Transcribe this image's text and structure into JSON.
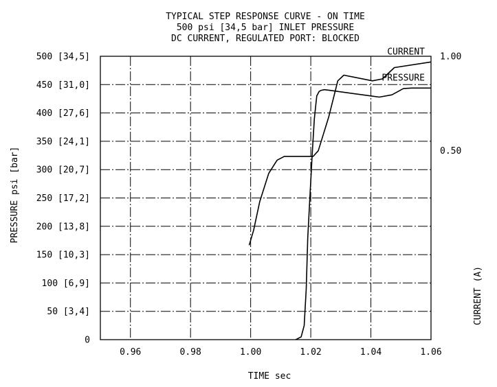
{
  "chart_data": {
    "type": "line",
    "title": "TYPICAL STEP RESPONSE CURVE - ON TIME",
    "subtitle_1": "500 psi [34,5 bar] INLET PRESSURE",
    "subtitle_2": "DC CURRENT, REGULATED PORT: BLOCKED",
    "xlabel": "TIME sec",
    "ylabel_left": "PRESSURE psi [bar]",
    "ylabel_right": "CURRENT (A)",
    "xlim": [
      0.95,
      1.06
    ],
    "ylim_left": [
      0,
      500
    ],
    "ylim_right": [
      -0.5,
      1.0
    ],
    "x_ticks": [
      "0.96",
      "0.98",
      "1.00",
      "1.02",
      "1.04",
      "1.06"
    ],
    "y_ticks_left": [
      "0",
      "50 [3,4]",
      "100 [6,9]",
      "150 [10,3]",
      "200 [13,8]",
      "250 [17,2]",
      "300 [20,7]",
      "350 [24,1]",
      "400 [27,6]",
      "450 [31,0]",
      "500 [34,5]"
    ],
    "y_ticks_right": [
      "0.50",
      "1.00"
    ],
    "grid": true,
    "series": [
      {
        "name": "PRESSURE",
        "axis": "left",
        "x": [
          1.015,
          1.0168,
          1.0178,
          1.0185,
          1.019,
          1.0198,
          1.0205,
          1.0212,
          1.022,
          1.0228,
          1.0235,
          1.0245,
          1.0262,
          1.04,
          1.0428,
          1.047,
          1.0508,
          1.0535,
          1.06
        ],
        "y": [
          0,
          5,
          25,
          90,
          180,
          260,
          330,
          390,
          430,
          438,
          440,
          441,
          440,
          430,
          428,
          432,
          443,
          444,
          444
        ]
      },
      {
        "name": "CURRENT",
        "axis": "right",
        "x": [
          0.9995,
          1.001,
          1.003,
          1.006,
          1.0088,
          1.0112,
          1.0135,
          1.0175,
          1.0208,
          1.0225,
          1.026,
          1.029,
          1.031,
          1.0405,
          1.0438,
          1.0478,
          1.06
        ],
        "y": [
          0.0,
          0.08,
          0.23,
          0.38,
          0.45,
          0.47,
          0.47,
          0.47,
          0.47,
          0.5,
          0.68,
          0.87,
          0.9,
          0.87,
          0.88,
          0.94,
          0.97
        ]
      }
    ]
  }
}
